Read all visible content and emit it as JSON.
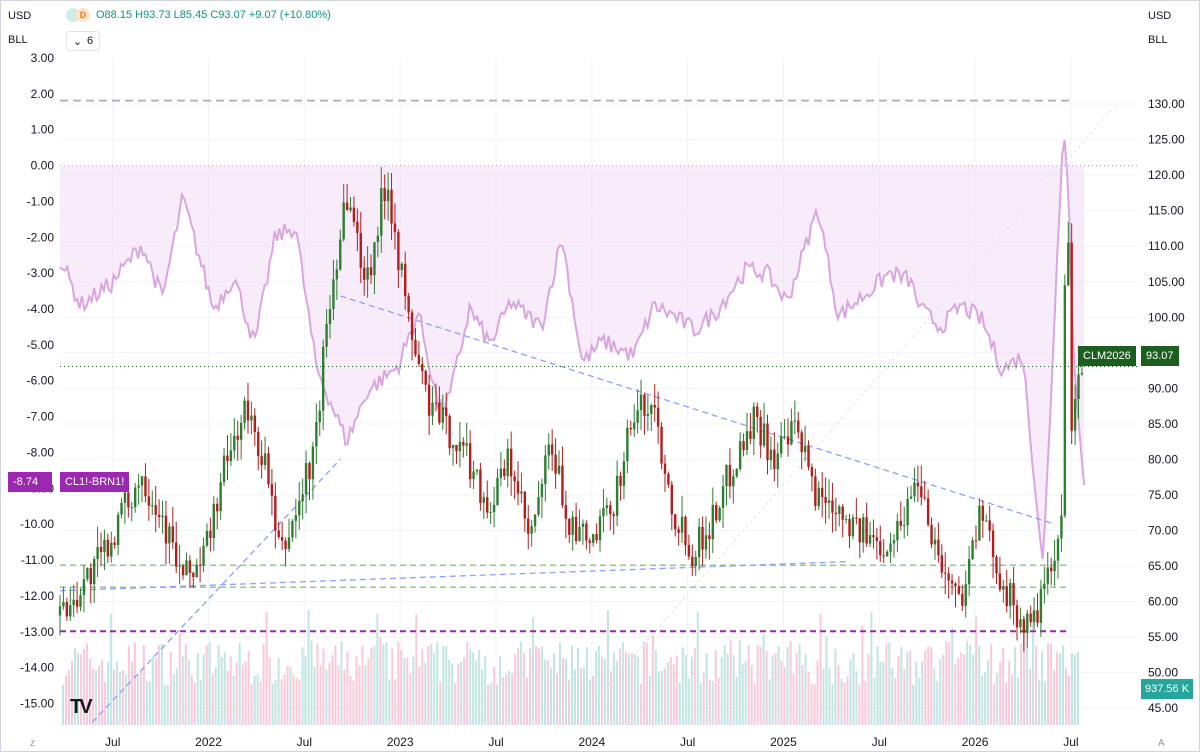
{
  "legend": {
    "currency_left": "USD",
    "unit_left": "BLL",
    "currency_right": "USD",
    "unit_right": "BLL",
    "ohlc": "O88.15 H93.73 L85.45 C93.07 +9.07 (+10.80%)",
    "indicators_count": "6",
    "interval_badge": "D"
  },
  "labels": {
    "spread_symbol": "CL1!-BRN1!",
    "spread_value": "-8.74",
    "price_symbol": "CLM2026",
    "price_value": "93.07",
    "volume_value": "937.56 K",
    "logo": "TV",
    "axis_corner_left": "z",
    "axis_corner_right": "A"
  },
  "colors": {
    "bull": "#2e7d32",
    "bear": "#b71c1c",
    "spread_line": "#d9a6e0",
    "spread_fill": "#f3e0f7",
    "trend_blue": "#8c9eff",
    "support_green": "#81c784",
    "resistance_purple": "#9c27b0",
    "volume_up": "#b2dfdb",
    "volume_down": "#f8bbd0"
  },
  "chart_data": {
    "type": "candlestick",
    "title": "",
    "x_labels": [
      "Jul",
      "2022",
      "Jul",
      "2023",
      "Jul",
      "2024",
      "Jul",
      "2025",
      "Jul",
      "2026",
      "Jul"
    ],
    "y_right_ticks": [
      "45.00",
      "50.00",
      "55.00",
      "60.00",
      "65.00",
      "70.00",
      "75.00",
      "80.00",
      "85.00",
      "90.00",
      "95.00",
      "100.00",
      "105.00",
      "110.00",
      "115.00",
      "120.00",
      "125.00",
      "130.00"
    ],
    "y_left_ticks": [
      "3.00",
      "2.00",
      "1.00",
      "0.00",
      "-1.00",
      "-2.00",
      "-3.00",
      "-4.00",
      "-5.00",
      "-6.00",
      "-7.00",
      "-8.00",
      "-9.00",
      "-10.00",
      "-11.00",
      "-12.00",
      "-13.00",
      "-14.00",
      "-15.00"
    ],
    "price_range": [
      42.6,
      136.5
    ],
    "spread_range": [
      -15.6,
      3.0
    ],
    "grid": true,
    "series": [
      {
        "name": "CLM2026",
        "kind": "close",
        "x": [
          0,
          0.02,
          0.04,
          0.06,
          0.08,
          0.1,
          0.12,
          0.14,
          0.16,
          0.18,
          0.2,
          0.215,
          0.23,
          0.25,
          0.26,
          0.28,
          0.3,
          0.32,
          0.34,
          0.36,
          0.38,
          0.4,
          0.42,
          0.44,
          0.46,
          0.48,
          0.5,
          0.52,
          0.54,
          0.56,
          0.58,
          0.6,
          0.62,
          0.64,
          0.66,
          0.68,
          0.7,
          0.72,
          0.74,
          0.76,
          0.78,
          0.8,
          0.82,
          0.84,
          0.86,
          0.88,
          0.9,
          0.92,
          0.935,
          0.95,
          0.96,
          0.97,
          0.98,
          0.985,
          0.99,
          1.0
        ],
        "values": [
          58,
          62,
          66,
          72,
          78,
          72,
          63,
          66,
          78,
          87,
          80,
          66,
          72,
          82,
          98,
          118,
          105,
          120,
          100,
          88,
          84,
          80,
          73,
          80,
          68,
          82,
          70,
          68,
          73,
          86,
          88,
          73,
          67,
          72,
          80,
          86,
          80,
          84,
          75,
          74,
          70,
          68,
          70,
          78,
          66,
          60,
          72,
          64,
          58,
          56,
          60,
          64,
          70,
          126,
          84,
          93.07
        ]
      },
      {
        "name": "CL1!-BRN1!",
        "kind": "spread",
        "x": [
          0,
          0.02,
          0.05,
          0.08,
          0.1,
          0.12,
          0.15,
          0.17,
          0.19,
          0.21,
          0.23,
          0.25,
          0.28,
          0.3,
          0.33,
          0.35,
          0.37,
          0.38,
          0.4,
          0.42,
          0.44,
          0.47,
          0.49,
          0.51,
          0.53,
          0.56,
          0.58,
          0.6,
          0.62,
          0.64,
          0.67,
          0.69,
          0.71,
          0.74,
          0.76,
          0.79,
          0.81,
          0.83,
          0.84,
          0.86,
          0.88,
          0.9,
          0.92,
          0.94,
          0.96,
          0.98,
          0.985,
          0.99,
          1.0
        ],
        "values": [
          -2.6,
          -3.9,
          -3.3,
          -2.2,
          -3.7,
          -0.9,
          -4.0,
          -3.1,
          -5.0,
          -2.0,
          -1.7,
          -5.6,
          -7.7,
          -6.3,
          -5.6,
          -4.1,
          -6.8,
          -6.5,
          -4.0,
          -5.0,
          -3.8,
          -4.5,
          -2.0,
          -5.5,
          -4.9,
          -5.3,
          -3.9,
          -4.2,
          -4.6,
          -4.1,
          -2.9,
          -3.0,
          -3.8,
          -1.2,
          -4.2,
          -3.5,
          -3.0,
          -3.2,
          -4.0,
          -4.5,
          -3.9,
          -4.3,
          -5.7,
          -5.3,
          -11.2,
          1.4,
          -1.0,
          -5.5,
          -8.74
        ]
      }
    ],
    "annotations": [
      {
        "label": "CL1!-BRN1!",
        "value": -8.74
      },
      {
        "label": "CLM2026",
        "value": 93.07
      },
      {
        "label": "Volume",
        "value": "937.56 K"
      }
    ]
  }
}
